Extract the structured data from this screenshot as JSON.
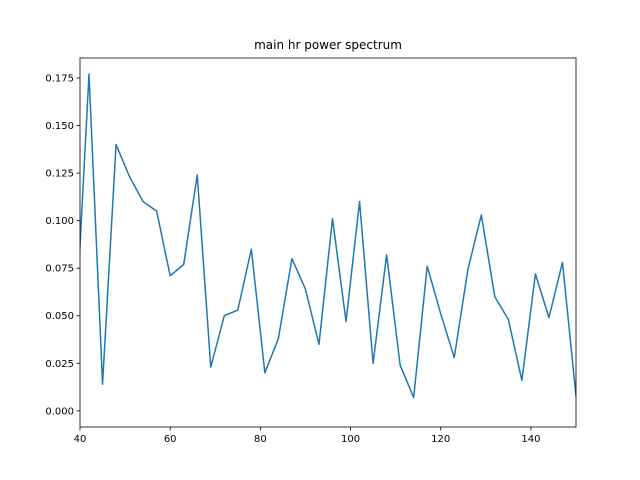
{
  "chart_data": {
    "type": "line",
    "title": "main hr power spectrum",
    "xlabel": "",
    "ylabel": "",
    "xlim": [
      40,
      150
    ],
    "ylim": [
      -0.0085,
      0.1855
    ],
    "grid": false,
    "legend": "none",
    "line_color": "#1f77b4",
    "x_ticks": [
      40,
      60,
      80,
      100,
      120,
      140
    ],
    "y_ticks": [
      0.0,
      0.025,
      0.05,
      0.075,
      0.1,
      0.125,
      0.15,
      0.175
    ],
    "x_tick_labels": [
      "40",
      "60",
      "80",
      "100",
      "120",
      "140"
    ],
    "y_tick_labels": [
      "0.000",
      "0.025",
      "0.050",
      "0.075",
      "0.100",
      "0.125",
      "0.150",
      "0.175"
    ],
    "series": [
      {
        "x": [
          39.0,
          42.0,
          45.0,
          48.0,
          51.0,
          54.0,
          57.0,
          60.0,
          63.0,
          66.0,
          69.0,
          72.0,
          75.0,
          78.0,
          81.0,
          84.0,
          87.0,
          90.0,
          93.0,
          96.0,
          99.0,
          102.0,
          105.0,
          108.0,
          111.0,
          114.0,
          117.0,
          120.0,
          123.0,
          126.0,
          129.0,
          132.0,
          135.0,
          138.0,
          141.0,
          144.0,
          147.0,
          150.0
        ],
        "values": [
          0.042,
          0.177,
          0.014,
          0.14,
          0.123,
          0.11,
          0.105,
          0.071,
          0.077,
          0.124,
          0.023,
          0.05,
          0.053,
          0.085,
          0.02,
          0.038,
          0.08,
          0.064,
          0.035,
          0.101,
          0.047,
          0.11,
          0.025,
          0.082,
          0.024,
          0.007,
          0.076,
          0.051,
          0.028,
          0.074,
          0.103,
          0.06,
          0.048,
          0.016,
          0.072,
          0.049,
          0.078,
          0.008
        ]
      }
    ]
  }
}
